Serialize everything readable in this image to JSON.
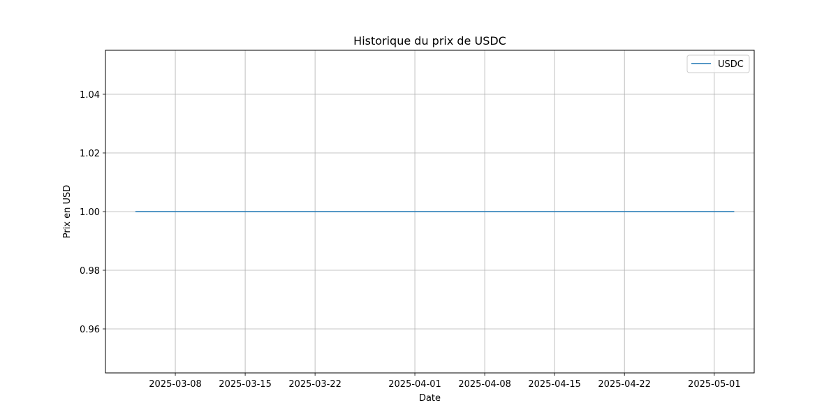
{
  "chart_data": {
    "type": "line",
    "title": "Historique du prix de USDC",
    "xlabel": "Date",
    "ylabel": "Prix en USD",
    "x_range": [
      "2025-03-01",
      "2025-05-05"
    ],
    "ylim": [
      0.945,
      1.055
    ],
    "x_ticks": [
      "2025-03-08",
      "2025-03-15",
      "2025-03-22",
      "2025-04-01",
      "2025-04-08",
      "2025-04-15",
      "2025-04-22",
      "2025-05-01"
    ],
    "y_ticks": [
      0.96,
      0.98,
      1.0,
      1.02,
      1.04
    ],
    "y_tick_labels": [
      "0.96",
      "0.98",
      "1.00",
      "1.02",
      "1.04"
    ],
    "grid": true,
    "legend_position": "top-right",
    "series": [
      {
        "name": "USDC",
        "color": "#1f77b4",
        "points": [
          {
            "x": "2025-03-04",
            "y": 1.0
          },
          {
            "x": "2025-05-03",
            "y": 1.0
          }
        ]
      }
    ]
  }
}
